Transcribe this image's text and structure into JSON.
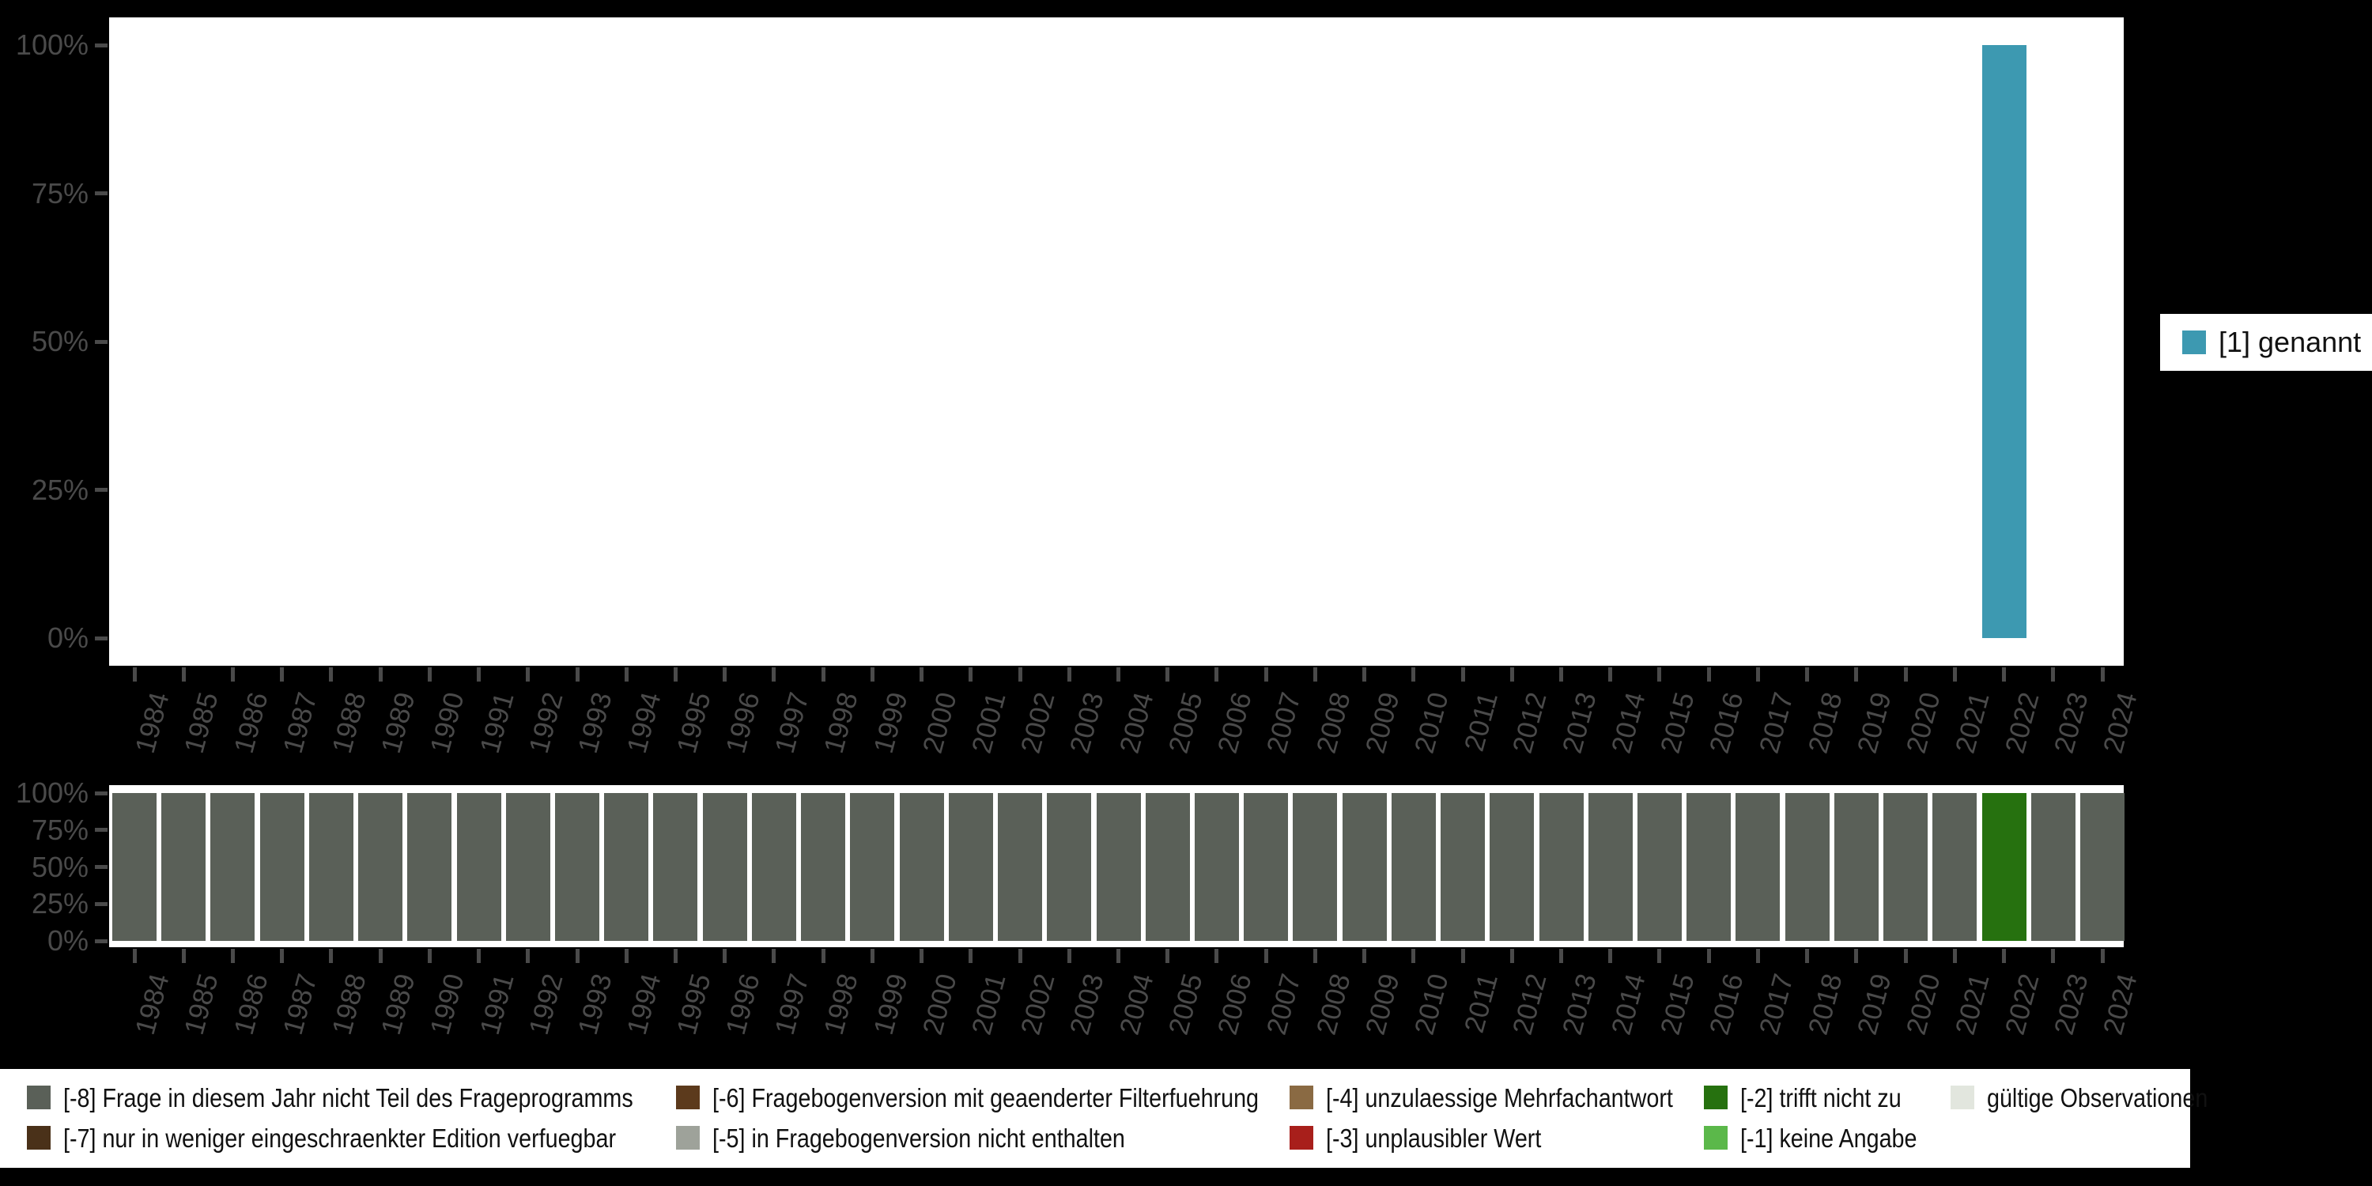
{
  "background_color": "#000000",
  "axis": {
    "tick_color": "#4a4a4a",
    "label_color": "#4a4a4a",
    "y_tick_labels": [
      "100%",
      "75%",
      "50%",
      "25%",
      "0%"
    ],
    "x_tick_labels": [
      "1984",
      "1985",
      "1986",
      "1987",
      "1988",
      "1989",
      "1990",
      "1991",
      "1992",
      "1993",
      "1994",
      "1995",
      "1996",
      "1997",
      "1998",
      "1999",
      "2000",
      "2001",
      "2002",
      "2003",
      "2004",
      "2005",
      "2006",
      "2007",
      "2008",
      "2009",
      "2010",
      "2011",
      "2012",
      "2013",
      "2014",
      "2015",
      "2016",
      "2017",
      "2018",
      "2019",
      "2020",
      "2021",
      "2022",
      "2023",
      "2024"
    ]
  },
  "legend_right": {
    "items": [
      {
        "label": "[1] genannt",
        "color": "#3D99B1"
      }
    ]
  },
  "legend_bottom": {
    "items": [
      {
        "label": "[-8] Frage in diesem Jahr nicht Teil des Frageprogramms",
        "color": "#5A6058",
        "col": 0,
        "row": 0
      },
      {
        "label": "[-7] nur in weniger eingeschraenkter Edition verfuegbar",
        "color": "#4A3119",
        "col": 0,
        "row": 1
      },
      {
        "label": "[-6] Fragebogenversion mit geaenderter Filterfuehrung",
        "color": "#5C3A1C",
        "col": 1,
        "row": 0
      },
      {
        "label": "[-5] in Fragebogenversion nicht enthalten",
        "color": "#9EA29A",
        "col": 1,
        "row": 1
      },
      {
        "label": "[-4] unzulaessige Mehrfachantwort",
        "color": "#8A6A43",
        "col": 2,
        "row": 0
      },
      {
        "label": "[-3] unplausibler Wert",
        "color": "#A81F1B",
        "col": 2,
        "row": 1
      },
      {
        "label": "[-2] trifft nicht zu",
        "color": "#26710F",
        "col": 3,
        "row": 0
      },
      {
        "label": "[-1] keine Angabe",
        "color": "#5BB84A",
        "col": 3,
        "row": 1
      },
      {
        "label": "gültige Observationen",
        "color": "#E2E6DE",
        "col": 4,
        "row": 0
      }
    ]
  },
  "chart_data": [
    {
      "type": "bar",
      "title": "",
      "xlabel": "",
      "ylabel": "",
      "ylim": [
        0,
        100
      ],
      "yticks_percent": [
        0,
        25,
        50,
        75,
        100
      ],
      "grid": false,
      "legend_position": "right",
      "categories": [
        1984,
        1985,
        1986,
        1987,
        1988,
        1989,
        1990,
        1991,
        1992,
        1993,
        1994,
        1995,
        1996,
        1997,
        1998,
        1999,
        2000,
        2001,
        2002,
        2003,
        2004,
        2005,
        2006,
        2007,
        2008,
        2009,
        2010,
        2011,
        2012,
        2013,
        2014,
        2015,
        2016,
        2017,
        2018,
        2019,
        2020,
        2021,
        2022,
        2023,
        2024
      ],
      "series": [
        {
          "name": "[1] genannt",
          "color": "#3D99B1",
          "values": [
            0,
            0,
            0,
            0,
            0,
            0,
            0,
            0,
            0,
            0,
            0,
            0,
            0,
            0,
            0,
            0,
            0,
            0,
            0,
            0,
            0,
            0,
            0,
            0,
            0,
            0,
            0,
            0,
            0,
            0,
            0,
            0,
            0,
            0,
            0,
            0,
            0,
            0,
            100,
            0,
            0
          ]
        }
      ]
    },
    {
      "type": "bar",
      "title": "",
      "xlabel": "",
      "ylabel": "",
      "ylim": [
        0,
        100
      ],
      "yticks_percent": [
        0,
        25,
        50,
        75,
        100
      ],
      "grid": false,
      "legend_position": "bottom",
      "categories": [
        1984,
        1985,
        1986,
        1987,
        1988,
        1989,
        1990,
        1991,
        1992,
        1993,
        1994,
        1995,
        1996,
        1997,
        1998,
        1999,
        2000,
        2001,
        2002,
        2003,
        2004,
        2005,
        2006,
        2007,
        2008,
        2009,
        2010,
        2011,
        2012,
        2013,
        2014,
        2015,
        2016,
        2017,
        2018,
        2019,
        2020,
        2021,
        2022,
        2023,
        2024
      ],
      "values": [
        100,
        100,
        100,
        100,
        100,
        100,
        100,
        100,
        100,
        100,
        100,
        100,
        100,
        100,
        100,
        100,
        100,
        100,
        100,
        100,
        100,
        100,
        100,
        100,
        100,
        100,
        100,
        100,
        100,
        100,
        100,
        100,
        100,
        100,
        100,
        100,
        100,
        100,
        100,
        100,
        100
      ],
      "codes": [
        "[-8]",
        "[-8]",
        "[-8]",
        "[-8]",
        "[-8]",
        "[-8]",
        "[-8]",
        "[-8]",
        "[-8]",
        "[-8]",
        "[-8]",
        "[-8]",
        "[-8]",
        "[-8]",
        "[-8]",
        "[-8]",
        "[-8]",
        "[-8]",
        "[-8]",
        "[-8]",
        "[-8]",
        "[-8]",
        "[-8]",
        "[-8]",
        "[-8]",
        "[-8]",
        "[-8]",
        "[-8]",
        "[-8]",
        "[-8]",
        "[-8]",
        "[-8]",
        "[-8]",
        "[-8]",
        "[-8]",
        "[-8]",
        "[-8]",
        "[-8]",
        "[-2]",
        "[-8]",
        "[-8]"
      ],
      "code_colors": {
        "[-8]": "#5A6058",
        "[-7]": "#4A3119",
        "[-6]": "#5C3A1C",
        "[-5]": "#9EA29A",
        "[-4]": "#8A6A43",
        "[-3]": "#A81F1B",
        "[-2]": "#26710F",
        "[-1]": "#5BB84A",
        "gueltige Observationen": "#E2E6DE"
      }
    }
  ]
}
